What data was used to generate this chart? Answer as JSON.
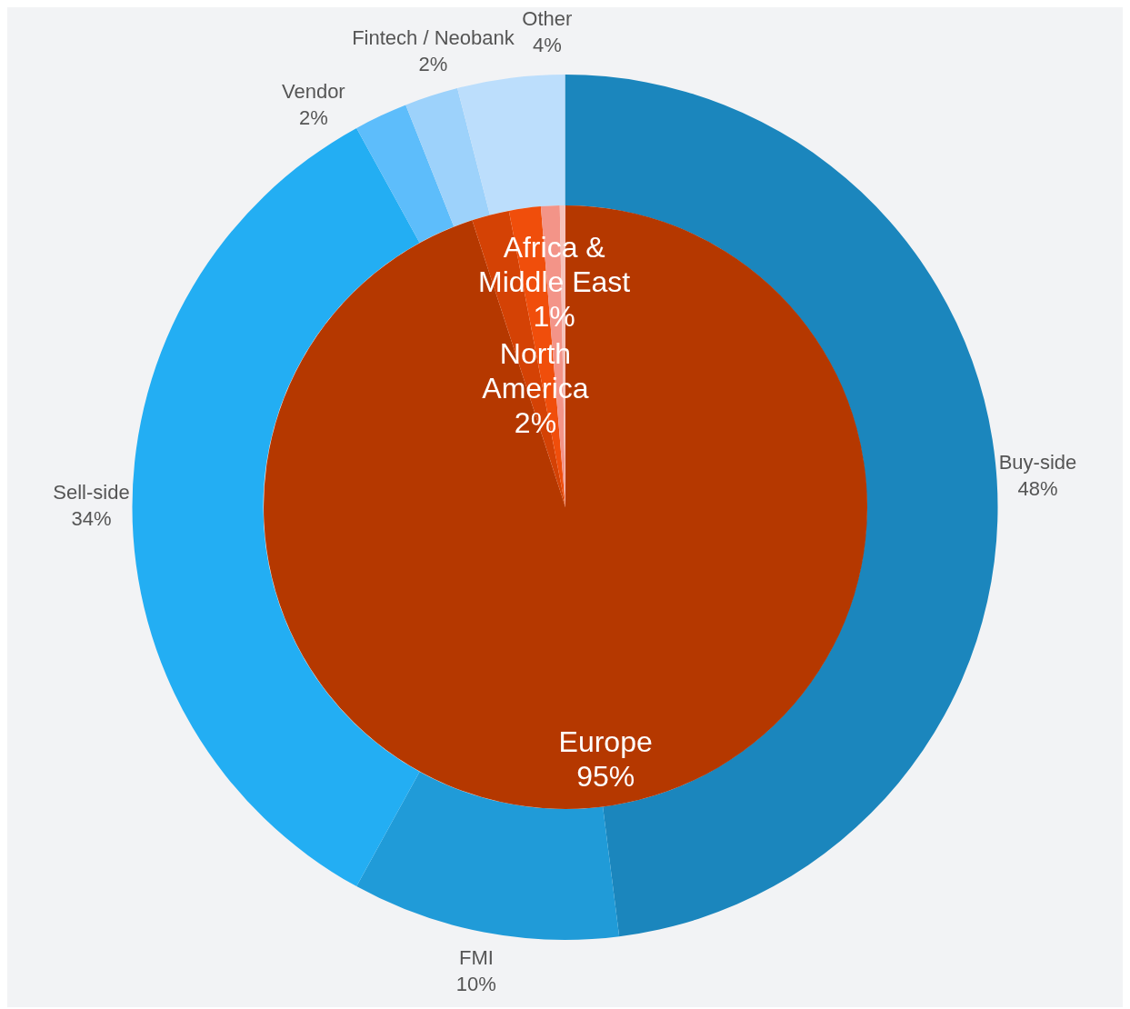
{
  "chart_data": [
    {
      "type": "donut",
      "categories": [
        "Buy-side",
        "FMI",
        "Sell-side",
        "Vendor",
        "Fintech / Neobank",
        "Other"
      ],
      "values": [
        48,
        10,
        34,
        2,
        2,
        4
      ],
      "colors": [
        "#1b86bd",
        "#209bd8",
        "#23aef3",
        "#5dbdfb",
        "#9dd2fb",
        "#bcdefc"
      ],
      "value_labels": [
        "48%",
        "10%",
        "34%",
        "2%",
        "2%",
        "4%"
      ]
    },
    {
      "type": "pie",
      "categories": [
        "Europe",
        "North America",
        null,
        "Africa & Middle East",
        null
      ],
      "values": [
        95,
        2,
        1.7,
        1,
        0.3
      ],
      "colors": [
        "#b53800",
        "#d44205",
        "#f04e0b",
        "#f39488",
        "#f6c2bb"
      ],
      "value_labels": [
        "95%",
        "2%",
        null,
        "1%",
        null
      ]
    }
  ]
}
